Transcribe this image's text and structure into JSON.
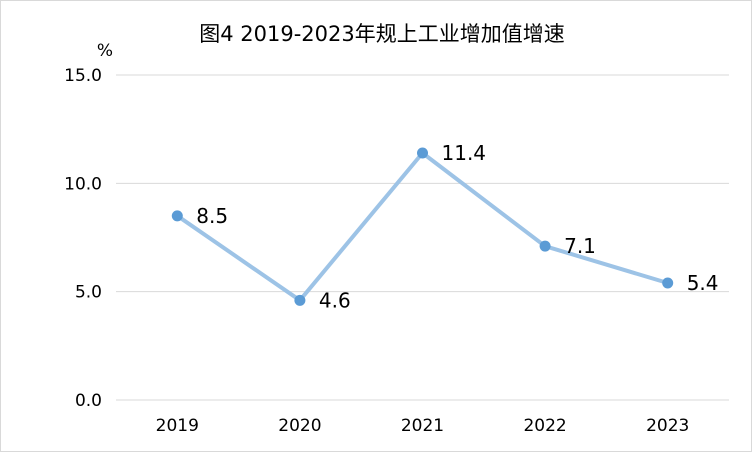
{
  "chart_data": {
    "type": "line",
    "title": "图4 2019-2023年规上工业增加值增速",
    "ylabel": "%",
    "xlabel": "",
    "categories": [
      "2019",
      "2020",
      "2021",
      "2022",
      "2023"
    ],
    "values": [
      8.5,
      4.6,
      11.4,
      7.1,
      5.4
    ],
    "data_labels": [
      "8.5",
      "4.6",
      "11.4",
      "7.1",
      "5.4"
    ],
    "ylim": [
      0,
      15
    ],
    "yticks": [
      0,
      5,
      10,
      15
    ],
    "ytick_labels": [
      "0.0",
      "5.0",
      "10.0",
      "15.0"
    ],
    "grid": true,
    "legend": "none",
    "line_color": "#9dc3e6",
    "marker_color": "#5b9bd5"
  }
}
